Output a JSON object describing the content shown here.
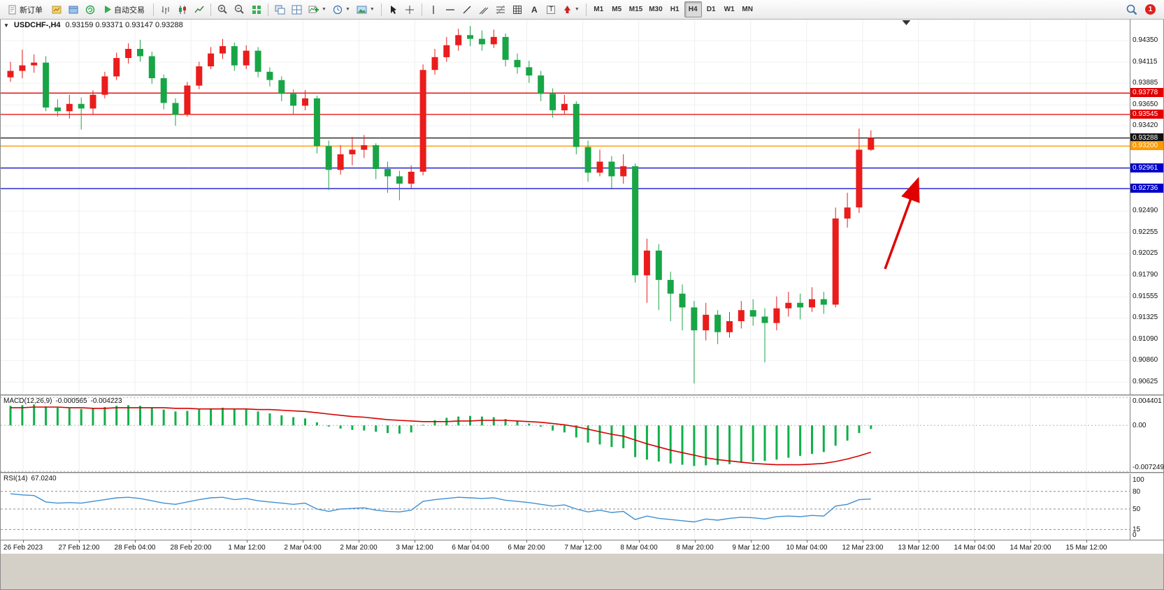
{
  "toolbar": {
    "new_order_label": "新订单",
    "autotrade_label": "自动交易",
    "timeframes": [
      "M1",
      "M5",
      "M15",
      "M30",
      "H1",
      "H4",
      "D1",
      "W1",
      "MN"
    ],
    "active_timeframe": "H4",
    "notification_count": "1",
    "icons": [
      "new-order-icon",
      "new-chart-icon",
      "profiles-icon",
      "refresh-icon",
      "autotrading-icon",
      "bar-chart-icon",
      "candlestick-icon",
      "line-chart-icon",
      "zoom-in-icon",
      "zoom-out-icon",
      "tile-windows-icon",
      "cascade-windows-icon",
      "indicators-icon",
      "periods-icon",
      "templates-icon",
      "cursor-icon",
      "crosshair-icon",
      "vertical-line-icon",
      "horizontal-line-icon",
      "trendline-icon",
      "channel-icon",
      "fibonacci-icon",
      "shapes-icon",
      "text-icon",
      "label-icon",
      "arrows-icon",
      "search-icon",
      "notification-icon"
    ]
  },
  "chart": {
    "symbol_label": "USDCHF-,H4",
    "ohlc_label": "0.93159 0.93371 0.93147 0.93288"
  },
  "macd": {
    "label": "MACD(12,26,9)",
    "value_main": "-0.000565",
    "value_signal": "-0.004223",
    "axis_ticks": [
      0.004401,
      0,
      -0.007249
    ],
    "axis_labels": [
      "0.004401",
      "0.00",
      "-0.007249"
    ]
  },
  "rsi": {
    "label": "RSI(14)",
    "value": "67.0240",
    "axis_ticks": [
      100,
      80,
      50,
      15,
      0
    ],
    "levels": [
      80,
      50,
      15
    ]
  },
  "price_axis_ticks": [
    "0.94350",
    "0.94115",
    "0.93885",
    "0.93650",
    "0.93420",
    "0.92490",
    "0.92255",
    "0.92025",
    "0.91790",
    "0.91555",
    "0.91325",
    "0.91090",
    "0.90860",
    "0.90625"
  ],
  "levels": [
    {
      "price": 0.93778,
      "label": "0.93778",
      "color": "#e00000"
    },
    {
      "price": 0.93545,
      "label": "0.93545",
      "color": "#e00000"
    },
    {
      "price": 0.93288,
      "label": "0.93288",
      "color": "#111111"
    },
    {
      "price": 0.932,
      "label": "0.93200",
      "color": "#ff9900"
    },
    {
      "price": 0.92961,
      "label": "0.92961",
      "color": "#0000c8"
    },
    {
      "price": 0.92736,
      "label": "0.92736",
      "color": "#0000c8"
    }
  ],
  "time_axis": [
    "26 Feb 2023",
    "27 Feb 12:00",
    "28 Feb 04:00",
    "28 Feb 20:00",
    "1 Mar 12:00",
    "2 Mar 04:00",
    "2 Mar 20:00",
    "3 Mar 12:00",
    "6 Mar 04:00",
    "6 Mar 20:00",
    "7 Mar 12:00",
    "8 Mar 04:00",
    "8 Mar 20:00",
    "9 Mar 12:00",
    "10 Mar 04:00",
    "12 Mar 23:00",
    "13 Mar 12:00",
    "14 Mar 04:00",
    "14 Mar 20:00",
    "15 Mar 12:00"
  ],
  "chart_data": {
    "type": "candlestick",
    "symbol": "USDCHF",
    "timeframe": "H4",
    "price_max": 0.9458,
    "price_min": 0.9049,
    "candles": [
      [
        0.9395,
        0.9412,
        0.939,
        0.9402
      ],
      [
        0.9402,
        0.9425,
        0.9394,
        0.9408
      ],
      [
        0.9408,
        0.942,
        0.94,
        0.9411
      ],
      [
        0.9411,
        0.9418,
        0.9358,
        0.9362
      ],
      [
        0.9362,
        0.9371,
        0.9352,
        0.9358
      ],
      [
        0.9358,
        0.9376,
        0.935,
        0.9366
      ],
      [
        0.9366,
        0.9373,
        0.9338,
        0.9361
      ],
      [
        0.9361,
        0.9381,
        0.9355,
        0.9376
      ],
      [
        0.9376,
        0.9401,
        0.9372,
        0.9396
      ],
      [
        0.9396,
        0.9422,
        0.9392,
        0.9416
      ],
      [
        0.9416,
        0.9432,
        0.941,
        0.9426
      ],
      [
        0.9426,
        0.9436,
        0.9412,
        0.9418
      ],
      [
        0.9418,
        0.9423,
        0.9388,
        0.9394
      ],
      [
        0.9394,
        0.9398,
        0.936,
        0.9367
      ],
      [
        0.9367,
        0.9372,
        0.9342,
        0.9354
      ],
      [
        0.9354,
        0.939,
        0.9352,
        0.9386
      ],
      [
        0.9386,
        0.9412,
        0.9382,
        0.9407
      ],
      [
        0.9407,
        0.9428,
        0.9404,
        0.9421
      ],
      [
        0.9421,
        0.9437,
        0.9415,
        0.9429
      ],
      [
        0.9429,
        0.9433,
        0.9402,
        0.9408
      ],
      [
        0.9408,
        0.943,
        0.9404,
        0.9424
      ],
      [
        0.9424,
        0.9428,
        0.9395,
        0.9401
      ],
      [
        0.9401,
        0.9406,
        0.9385,
        0.9392
      ],
      [
        0.9392,
        0.9396,
        0.9369,
        0.9377
      ],
      [
        0.9377,
        0.9382,
        0.9355,
        0.9364
      ],
      [
        0.9364,
        0.9381,
        0.9359,
        0.9372
      ],
      [
        0.9372,
        0.9375,
        0.9312,
        0.932
      ],
      [
        0.932,
        0.9326,
        0.9272,
        0.9294
      ],
      [
        0.9294,
        0.9321,
        0.9289,
        0.9311
      ],
      [
        0.9311,
        0.933,
        0.9299,
        0.9316
      ],
      [
        0.9316,
        0.9332,
        0.9307,
        0.9321
      ],
      [
        0.9321,
        0.9323,
        0.9284,
        0.9295
      ],
      [
        0.9295,
        0.9303,
        0.9269,
        0.9287
      ],
      [
        0.9287,
        0.9293,
        0.9261,
        0.9279
      ],
      [
        0.9279,
        0.9299,
        0.9274,
        0.9292
      ],
      [
        0.9292,
        0.9409,
        0.9288,
        0.9403
      ],
      [
        0.9403,
        0.9426,
        0.9398,
        0.9417
      ],
      [
        0.9417,
        0.9439,
        0.9412,
        0.943
      ],
      [
        0.943,
        0.9448,
        0.9424,
        0.9441
      ],
      [
        0.9441,
        0.9451,
        0.9429,
        0.9437
      ],
      [
        0.9437,
        0.9446,
        0.9424,
        0.9431
      ],
      [
        0.9431,
        0.9447,
        0.9427,
        0.9439
      ],
      [
        0.9439,
        0.9443,
        0.9407,
        0.9414
      ],
      [
        0.9414,
        0.9421,
        0.9399,
        0.9406
      ],
      [
        0.9406,
        0.9413,
        0.9389,
        0.9397
      ],
      [
        0.9397,
        0.9402,
        0.9369,
        0.9377
      ],
      [
        0.9377,
        0.9383,
        0.9351,
        0.9359
      ],
      [
        0.9359,
        0.9376,
        0.9354,
        0.9366
      ],
      [
        0.9366,
        0.9369,
        0.9311,
        0.9319
      ],
      [
        0.9319,
        0.9326,
        0.9281,
        0.9291
      ],
      [
        0.9291,
        0.9316,
        0.9287,
        0.9303
      ],
      [
        0.9303,
        0.9309,
        0.9274,
        0.9287
      ],
      [
        0.9287,
        0.9311,
        0.9279,
        0.9298
      ],
      [
        0.9298,
        0.9301,
        0.9171,
        0.9179
      ],
      [
        0.9179,
        0.9219,
        0.9149,
        0.9206
      ],
      [
        0.9206,
        0.9213,
        0.9141,
        0.9174
      ],
      [
        0.9174,
        0.9183,
        0.9129,
        0.9159
      ],
      [
        0.9159,
        0.9169,
        0.9119,
        0.9144
      ],
      [
        0.9144,
        0.9151,
        0.9061,
        0.9119
      ],
      [
        0.9119,
        0.9149,
        0.9108,
        0.9136
      ],
      [
        0.9136,
        0.9141,
        0.9104,
        0.9117
      ],
      [
        0.9117,
        0.9139,
        0.9111,
        0.9129
      ],
      [
        0.9129,
        0.9151,
        0.9121,
        0.9141
      ],
      [
        0.9141,
        0.9153,
        0.9124,
        0.9134
      ],
      [
        0.9134,
        0.9143,
        0.9084,
        0.9127
      ],
      [
        0.9127,
        0.9156,
        0.9119,
        0.9143
      ],
      [
        0.9143,
        0.9161,
        0.9134,
        0.9149
      ],
      [
        0.9149,
        0.9159,
        0.9131,
        0.9144
      ],
      [
        0.9144,
        0.9166,
        0.9139,
        0.9153
      ],
      [
        0.9153,
        0.9161,
        0.9137,
        0.9147
      ],
      [
        0.9147,
        0.9253,
        0.9144,
        0.9241
      ],
      [
        0.9241,
        0.9269,
        0.9231,
        0.9253
      ],
      [
        0.9253,
        0.9339,
        0.9247,
        0.9316
      ],
      [
        0.93159,
        0.93371,
        0.93147,
        0.93288
      ]
    ],
    "macd_histogram": [
      0.0031,
      0.0032,
      0.0033,
      0.003,
      0.0028,
      0.0027,
      0.0026,
      0.0027,
      0.0029,
      0.0031,
      0.0032,
      0.0031,
      0.0028,
      0.0025,
      0.0022,
      0.0023,
      0.0025,
      0.0027,
      0.0028,
      0.0026,
      0.0025,
      0.0022,
      0.0019,
      0.0016,
      0.0013,
      0.0011,
      0.0005,
      -0.0002,
      -0.0005,
      -0.0007,
      -0.0008,
      -0.001,
      -0.0012,
      -0.0013,
      -0.0011,
      0.0001,
      0.0008,
      0.0012,
      0.0014,
      0.0015,
      0.0014,
      0.0013,
      0.001,
      0.0007,
      0.0003,
      -0.0002,
      -0.0008,
      -0.0011,
      -0.0019,
      -0.0027,
      -0.003,
      -0.0034,
      -0.0036,
      -0.005,
      -0.0054,
      -0.0057,
      -0.006,
      -0.0062,
      -0.0064,
      -0.0063,
      -0.0062,
      -0.0061,
      -0.0059,
      -0.0057,
      -0.0056,
      -0.0054,
      -0.0051,
      -0.0048,
      -0.0045,
      -0.0042,
      -0.0032,
      -0.0024,
      -0.0012,
      -0.000565
    ],
    "macd_signal": [
      0.0028,
      0.0028,
      0.0029,
      0.0029,
      0.0029,
      0.0028,
      0.0028,
      0.0027,
      0.0027,
      0.0028,
      0.0028,
      0.0028,
      0.0028,
      0.0028,
      0.0027,
      0.0027,
      0.0026,
      0.0026,
      0.0026,
      0.0026,
      0.0026,
      0.0025,
      0.0025,
      0.0024,
      0.0023,
      0.0022,
      0.002,
      0.0018,
      0.0016,
      0.0014,
      0.0013,
      0.0011,
      0.0009,
      0.0008,
      0.0007,
      0.0006,
      0.0006,
      0.0006,
      0.0007,
      0.0007,
      0.0008,
      0.0008,
      0.0008,
      0.0007,
      0.0006,
      0.0005,
      0.0003,
      0.0001,
      -0.0002,
      -0.0006,
      -0.001,
      -0.0014,
      -0.0017,
      -0.0023,
      -0.0029,
      -0.0034,
      -0.0039,
      -0.0043,
      -0.0047,
      -0.0051,
      -0.0054,
      -0.0056,
      -0.0058,
      -0.006,
      -0.0061,
      -0.0062,
      -0.0062,
      -0.0062,
      -0.0061,
      -0.006,
      -0.0057,
      -0.0053,
      -0.0048,
      -0.004223
    ],
    "macd_max": 0.00455,
    "macd_min": -0.00735,
    "rsi_values": [
      76,
      74,
      73,
      62,
      60,
      61,
      60,
      63,
      66,
      69,
      70,
      68,
      64,
      60,
      58,
      62,
      66,
      69,
      70,
      66,
      68,
      64,
      62,
      60,
      58,
      60,
      50,
      46,
      50,
      51,
      52,
      48,
      46,
      45,
      48,
      63,
      66,
      68,
      70,
      69,
      68,
      69,
      65,
      63,
      61,
      58,
      55,
      57,
      50,
      45,
      48,
      44,
      46,
      32,
      38,
      34,
      32,
      30,
      28,
      33,
      31,
      34,
      36,
      35,
      33,
      37,
      38,
      37,
      39,
      38,
      55,
      58,
      66,
      67.02
    ],
    "arrow": {
      "from_index": 74.2,
      "from_price": 0.9186,
      "to_index": 77.0,
      "to_price": 0.9284
    },
    "shift_marker_index": 76,
    "colors": {
      "bull": "#ea1c1c",
      "bear": "#18a546",
      "macd_hist": "#10b04a",
      "macd_signal": "#d40000",
      "rsi": "#3f8fd2",
      "arrow": "#e00000"
    }
  }
}
